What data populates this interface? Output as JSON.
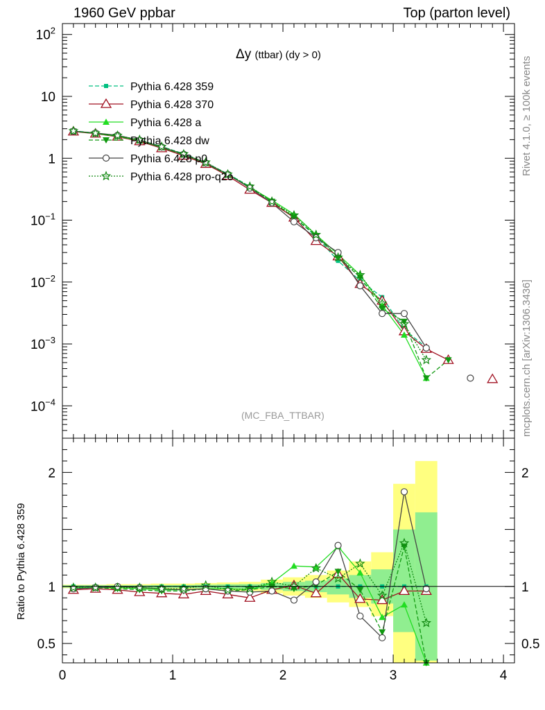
{
  "header": {
    "left": "1960 GeV ppbar",
    "right": "Top (parton level)"
  },
  "side_text": {
    "rivet": "Rivet 4.1.0, ≥ 100k events",
    "mcplots": "mcplots.cern.ch [arXiv:1306.3436]"
  },
  "chart_data": {
    "type": "line",
    "title": "Δy",
    "title_suffix": "(ttbar) (dy > 0)",
    "analysis_tag": "(MC_FBA_TTBAR)",
    "xlabel": "",
    "ylabel": "",
    "ratio_ylabel": "Ratio to Pythia 6.428 359",
    "xlim": [
      0,
      4.1
    ],
    "ylim": [
      3e-05,
      150
    ],
    "yscale": "log",
    "ratio_ylim": [
      0.33,
      2.3
    ],
    "x_ticks": [
      0,
      1,
      2,
      3,
      4
    ],
    "x_tick_labels": [
      "0",
      "1",
      "2",
      "3",
      "4"
    ],
    "y_ticks": [
      0.0001,
      0.001,
      0.01,
      0.1,
      1,
      10,
      100
    ],
    "y_tick_labels": [
      "10^-4",
      "10^-3",
      "10^-2",
      "10^-1",
      "1",
      "10",
      "10^2"
    ],
    "ratio_ticks": [
      0.5,
      1,
      2
    ],
    "ratio_tick_labels": [
      "0.5",
      "1",
      "2"
    ],
    "legend_position": "top-left",
    "x": [
      0.1,
      0.3,
      0.5,
      0.7,
      0.9,
      1.1,
      1.3,
      1.5,
      1.7,
      1.9,
      2.1,
      2.3,
      2.5,
      2.7,
      2.9,
      3.1,
      3.3,
      3.5,
      3.7,
      3.9
    ],
    "bands": [
      {
        "name": "stat+syst",
        "color": "#ffff80",
        "x": [
          0.1,
          0.3,
          0.5,
          0.7,
          0.9,
          1.1,
          1.3,
          1.5,
          1.7,
          1.9,
          2.1,
          2.3,
          2.5,
          2.7,
          2.9,
          3.1,
          3.3
        ],
        "low": [
          0.985,
          0.985,
          0.98,
          0.98,
          0.975,
          0.975,
          0.97,
          0.965,
          0.96,
          0.94,
          0.92,
          0.9,
          0.86,
          0.82,
          0.74,
          0.33,
          0.33
        ],
        "high": [
          1.015,
          1.015,
          1.02,
          1.02,
          1.025,
          1.025,
          1.03,
          1.035,
          1.04,
          1.06,
          1.08,
          1.1,
          1.14,
          1.22,
          1.3,
          1.9,
          2.1
        ]
      },
      {
        "name": "stat",
        "color": "#90ee90",
        "x": [
          0.1,
          0.3,
          0.5,
          0.7,
          0.9,
          1.1,
          1.3,
          1.5,
          1.7,
          1.9,
          2.1,
          2.3,
          2.5,
          2.7,
          2.9,
          3.1,
          3.3
        ],
        "low": [
          0.99,
          0.99,
          0.99,
          0.99,
          0.988,
          0.988,
          0.985,
          0.982,
          0.98,
          0.97,
          0.96,
          0.95,
          0.93,
          0.9,
          0.85,
          0.6,
          0.35
        ],
        "high": [
          1.01,
          1.01,
          1.01,
          1.01,
          1.012,
          1.012,
          1.015,
          1.018,
          1.02,
          1.03,
          1.04,
          1.05,
          1.07,
          1.1,
          1.15,
          1.5,
          1.65
        ]
      }
    ],
    "series": [
      {
        "name": "Pythia 6.428 359",
        "color": "#00c080",
        "dash": "6,3",
        "marker": "square-filled",
        "values": [
          2.78,
          2.55,
          2.3,
          1.97,
          1.55,
          1.18,
          0.85,
          0.56,
          0.35,
          0.2,
          0.11,
          0.055,
          0.022,
          0.0105,
          0.0057,
          0.0017,
          0.00088,
          null,
          null,
          null
        ],
        "ratio": [
          1.0,
          1.0,
          1.0,
          1.0,
          1.0,
          1.0,
          1.0,
          1.0,
          1.0,
          1.0,
          1.0,
          1.0,
          1.0,
          1.0,
          1.0,
          1.0,
          1.0,
          null,
          null,
          null
        ]
      },
      {
        "name": "Pythia 6.428 370",
        "color": "#a01020",
        "dash": "",
        "marker": "triangle-open",
        "values": [
          2.7,
          2.5,
          2.23,
          1.88,
          1.45,
          1.1,
          0.81,
          0.52,
          0.31,
          0.19,
          0.11,
          0.046,
          0.026,
          0.0093,
          0.005,
          0.0016,
          0.00083,
          0.00055,
          null,
          0.00027
        ],
        "ratio": [
          0.97,
          0.98,
          0.97,
          0.95,
          0.94,
          0.93,
          0.96,
          0.93,
          0.9,
          0.97,
          1.01,
          0.94,
          1.11,
          0.89,
          0.88,
          0.96,
          0.96,
          null,
          null,
          null
        ]
      },
      {
        "name": "Pythia 6.428 a",
        "color": "#22dd22",
        "dash": "",
        "marker": "triangle-filled",
        "values": [
          2.75,
          2.52,
          2.27,
          1.93,
          1.5,
          1.15,
          0.83,
          0.55,
          0.34,
          0.21,
          0.125,
          0.058,
          0.028,
          0.013,
          0.0042,
          0.0014,
          0.00028,
          null,
          null,
          null
        ],
        "ratio": [
          0.99,
          0.99,
          0.99,
          0.98,
          0.97,
          0.97,
          0.98,
          0.98,
          0.97,
          1.03,
          1.18,
          1.17,
          1.35,
          1.12,
          0.73,
          0.84,
          0.31,
          null,
          null,
          null
        ]
      },
      {
        "name": "Pythia 6.428 dw",
        "color": "#119911",
        "dash": "6,3",
        "marker": "triangledown-filled",
        "values": [
          2.73,
          2.51,
          2.26,
          1.92,
          1.49,
          1.14,
          0.83,
          0.54,
          0.34,
          0.2,
          0.112,
          0.056,
          0.025,
          0.012,
          0.0037,
          0.0023,
          0.00028,
          0.00055,
          null,
          null
        ],
        "ratio": [
          0.98,
          0.99,
          0.98,
          0.97,
          0.96,
          0.96,
          0.98,
          0.96,
          0.97,
          1.0,
          0.98,
          1.01,
          1.13,
          0.97,
          0.6,
          1.35,
          0.31,
          null,
          null,
          null
        ]
      },
      {
        "name": "Pythia 6.428 p0",
        "color": "#444444",
        "dash": "",
        "marker": "circle-open",
        "values": [
          2.74,
          2.56,
          2.35,
          1.96,
          1.52,
          1.16,
          0.84,
          0.55,
          0.33,
          0.19,
          0.094,
          0.052,
          0.03,
          0.0087,
          0.0031,
          0.0031,
          0.00086,
          null,
          0.00028,
          null
        ],
        "ratio": [
          0.98,
          0.99,
          1.0,
          0.99,
          0.98,
          0.97,
          0.98,
          0.96,
          0.95,
          0.96,
          0.88,
          1.04,
          1.36,
          0.74,
          0.55,
          1.83,
          0.98,
          null,
          null,
          null
        ]
      },
      {
        "name": "Pythia 6.428 pro-q2o",
        "color": "#118811",
        "dash": "2,2",
        "marker": "star-open",
        "values": [
          2.76,
          2.54,
          2.33,
          1.99,
          1.54,
          1.17,
          0.86,
          0.55,
          0.35,
          0.2,
          0.12,
          0.058,
          0.025,
          0.013,
          0.0045,
          0.0021,
          0.00055,
          null,
          null,
          null
        ],
        "ratio": [
          0.99,
          0.99,
          0.99,
          0.99,
          0.98,
          0.98,
          1.01,
          0.97,
          0.98,
          1.04,
          1.0,
          1.16,
          1.07,
          1.2,
          0.92,
          1.38,
          0.68,
          null,
          null,
          null
        ]
      }
    ]
  }
}
